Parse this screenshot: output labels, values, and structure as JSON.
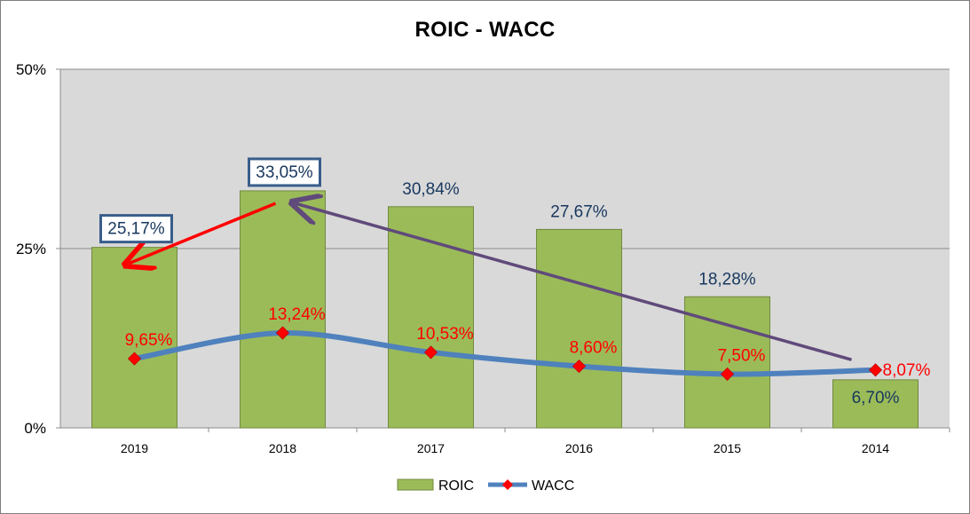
{
  "chart_data": {
    "type": "bar",
    "title": "ROIC - WACC",
    "categories": [
      "2019",
      "2018",
      "2017",
      "2016",
      "2015",
      "2014"
    ],
    "y_ticks": [
      "50%",
      "25%",
      "0%"
    ],
    "ylim": [
      0,
      50
    ],
    "grid": true,
    "legend_placement": "bottom",
    "series": [
      {
        "name": "ROIC",
        "kind": "bar",
        "values": [
          25.17,
          33.05,
          30.84,
          27.67,
          18.28,
          6.7
        ],
        "labels": [
          "25,17%",
          "33,05%",
          "30,84%",
          "27,67%",
          "18,28%",
          "6,70%"
        ],
        "color": "#9bbb59"
      },
      {
        "name": "WACC",
        "kind": "line",
        "values": [
          9.65,
          13.24,
          10.53,
          8.6,
          7.5,
          8.07
        ],
        "labels": [
          "9,65%",
          "13,24%",
          "10,53%",
          "8,60%",
          "7,50%",
          "8,07%"
        ],
        "color": "#4f81bd",
        "marker_color": "#ff0000"
      }
    ],
    "annotations": {
      "boxed_labels": [
        "2019",
        "2018"
      ],
      "red_arrow": {
        "from": "2018",
        "to": "2019"
      },
      "purple_arrow": {
        "from": "2014",
        "to": "2018"
      }
    },
    "colors": {
      "plot_background": "#d9d9d9",
      "roic_label": "#17375e",
      "wacc_label": "#ff0000",
      "box_border": "#385d8a",
      "red_arrow": "#ff0000",
      "purple_arrow": "#604a7b"
    }
  }
}
